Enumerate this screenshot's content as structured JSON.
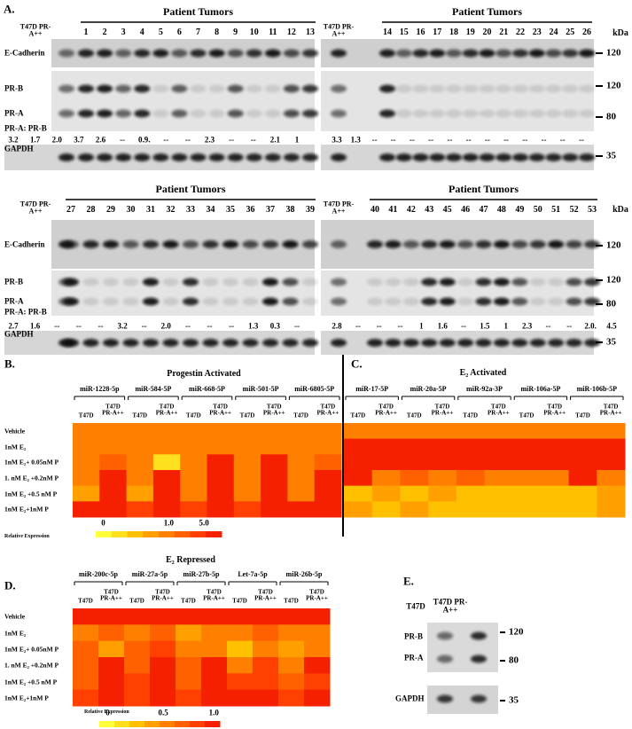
{
  "panel_a": {
    "label": "A.",
    "kda": "kDa",
    "blots": [
      {
        "title": "Patient Tumors",
        "control": "T47D PR-A++",
        "lanes": [
          "1",
          "2",
          "3",
          "4",
          "5",
          "6",
          "7",
          "8",
          "9",
          "10",
          "11",
          "12",
          "13"
        ],
        "rows": [
          "E-Cadherin",
          "PR-B",
          "PR-A",
          "GAPDH"
        ],
        "ratio_label": "PR-A: PR-B",
        "ratios": [
          "3.2",
          "1.7",
          "2.0",
          "3.7",
          "2.6",
          "--",
          "0.9.",
          "--",
          "--",
          "2.3",
          "--",
          "--",
          "2.1",
          "1"
        ]
      },
      {
        "title": "Patient Tumors",
        "control": "T47D PR-A++",
        "lanes": [
          "14",
          "15",
          "16",
          "17",
          "18",
          "19",
          "20",
          "21",
          "22",
          "23",
          "24",
          "25",
          "26"
        ],
        "ratios": [
          "3.3",
          "1.3",
          "--",
          "--",
          "--",
          "--",
          "--",
          "--",
          "--",
          "--",
          "--",
          "--",
          "--",
          "--"
        ],
        "markers": [
          120,
          120,
          80,
          35
        ]
      },
      {
        "title": "Patient Tumors",
        "control": "T47D PR-A++",
        "lanes": [
          "27",
          "28",
          "29",
          "30",
          "31",
          "32",
          "33",
          "34",
          "35",
          "36",
          "37",
          "38",
          "39"
        ],
        "rows": [
          "E-Cadherin",
          "PR-B",
          "PR-A",
          "GAPDH"
        ],
        "ratio_label": "PR-A: PR-B",
        "ratios": [
          "2.7",
          "1.6",
          "--",
          "--",
          "--",
          "3.2",
          "--",
          "2.0",
          "--",
          "--",
          "--",
          "1.3",
          "0.3",
          "--"
        ]
      },
      {
        "title": "Patient Tumors",
        "control": "T47D PR-A++",
        "lanes": [
          "40",
          "41",
          "42",
          "43",
          "45",
          "46",
          "47",
          "48",
          "49",
          "50",
          "51",
          "52",
          "53"
        ],
        "ratios": [
          "2.8",
          "--",
          "--",
          "--",
          "1",
          "1.6",
          "--",
          "1.5",
          "1",
          "2.3",
          "--",
          "--",
          "2.0.",
          "4.5"
        ],
        "markers": [
          120,
          120,
          80,
          35
        ]
      }
    ]
  },
  "colors": [
    "#ffff3c",
    "#ffe01e",
    "#ffc000",
    "#ffa000",
    "#ff8000",
    "#ff6000",
    "#ff4000",
    "#f52000"
  ],
  "panel_b": {
    "label": "B.",
    "title": "Progestin Activated",
    "mirnas": [
      "miR-1228-5p",
      "miR-584-5P",
      "miR-668-5P",
      "miR-501-5P",
      "miR-6805-5P"
    ],
    "samples": [
      "T47D",
      "T47D PR-A++"
    ],
    "conditions": [
      "Vehicle",
      "1nM E₂",
      "1nM E₂+ 0.05nM P",
      "1. nM E₂ +0.2nM P",
      "1nM E₂ +0.5 nM P",
      "1nM E₂+1nM P"
    ],
    "values": [
      [
        1,
        1,
        1,
        1,
        1,
        1,
        1,
        1,
        1,
        1
      ],
      [
        1,
        1.2,
        1,
        1.2,
        1,
        1,
        1,
        1,
        1,
        1.2
      ],
      [
        1,
        2,
        1,
        0.3,
        1,
        5,
        1,
        5,
        1,
        2
      ],
      [
        1,
        5,
        1,
        5,
        1,
        5,
        1,
        5,
        1,
        5
      ],
      [
        0.8,
        5,
        0.8,
        5,
        1,
        5,
        1,
        5,
        1,
        5
      ],
      [
        5,
        5,
        4,
        5,
        4,
        5,
        4,
        5,
        5,
        5
      ]
    ],
    "scale": {
      "label": "Relative Expression",
      "ticks": [
        0,
        {
          "value": 1,
          "label": "1.0"
        },
        {
          "value": 5,
          "label": "5.0"
        }
      ]
    }
  },
  "panel_c": {
    "label": "C.",
    "title": "E₂ Activated",
    "mirnas": [
      "miR-17-5P",
      "miR-20a-5P",
      "miR-92a-3P",
      "miR-106a-5P",
      "miR-106b-5P"
    ],
    "samples": [
      "T47D",
      "T47D PR-A++"
    ],
    "values": [
      [
        1,
        1,
        1,
        1,
        1,
        1,
        1,
        1,
        1,
        1
      ],
      [
        5,
        5,
        5,
        5,
        5,
        5,
        5,
        5,
        5,
        5
      ],
      [
        5,
        5,
        5,
        5,
        5,
        5,
        5,
        5,
        5,
        5
      ],
      [
        5,
        1.5,
        2,
        1.5,
        2,
        1.5,
        1.5,
        1,
        5,
        1.5
      ],
      [
        0.6,
        0.8,
        0.5,
        0.7,
        0.6,
        0.5,
        0.6,
        0.5,
        0.6,
        0.7
      ],
      [
        0.7,
        0.6,
        0.7,
        0.5,
        0.6,
        0.5,
        0.6,
        0.5,
        0.6,
        0.7
      ]
    ]
  },
  "panel_d": {
    "label": "D.",
    "title": "E₂ Repressed",
    "mirnas": [
      "miR-200c-5p",
      "miR-27a-5p",
      "miR-27b-5p",
      "Let-7a-5p",
      "miR-26b-5p"
    ],
    "samples": [
      "T47D",
      "T47D PR-A++"
    ],
    "conditions": [
      "Vehicle",
      "1nM E₂",
      "1nM E₂+ 0.05nM P",
      "1. nM E₂ +0.2nM P",
      "1nM E₂ +0.5 nM P",
      "1nM E₂+1nM P"
    ],
    "values": [
      [
        1,
        1,
        1,
        1,
        1,
        1,
        1,
        1,
        1,
        1
      ],
      [
        0.6,
        0.7,
        0.6,
        0.75,
        0.4,
        0.6,
        0.5,
        0.7,
        0.5,
        0.6
      ],
      [
        0.7,
        0.45,
        0.7,
        0.85,
        0.55,
        0.6,
        0.3,
        0.6,
        0.4,
        0.55
      ],
      [
        0.65,
        1,
        0.7,
        1,
        0.65,
        1,
        0.6,
        0.9,
        0.5,
        1
      ],
      [
        0.75,
        1,
        0.85,
        1,
        0.7,
        1,
        0.85,
        0.9,
        0.7,
        0.9
      ],
      [
        0.9,
        1,
        0.9,
        1,
        0.9,
        1,
        0.95,
        1,
        0.85,
        0.95
      ]
    ],
    "scale": {
      "label": "Relative Expression",
      "ticks": [
        0,
        0.5,
        {
          "value": 1,
          "label": "1.0"
        }
      ]
    }
  },
  "panel_e": {
    "label": "E.",
    "samples": [
      "T47D",
      "T47D PR-A++"
    ],
    "rows": [
      "PR-B",
      "PR-A",
      "GAPDH"
    ],
    "markers": [
      120,
      80,
      35
    ]
  }
}
